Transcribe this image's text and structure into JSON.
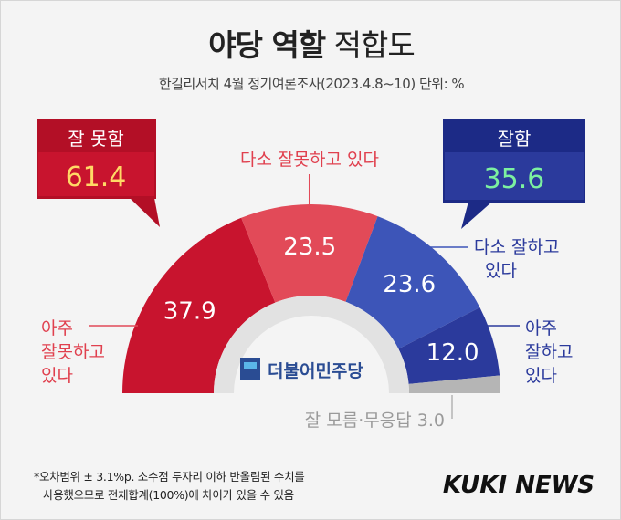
{
  "header": {
    "title_bold": "야당 역할",
    "title_light": "적합도",
    "subtitle": "한길리서치 4월 정기여론조사(2023.4.8~10) 단위: %"
  },
  "colors": {
    "red_dark": "#c8142e",
    "red_light": "#e24a58",
    "blue_dark": "#2b3a9c",
    "blue_light": "#3d55b8",
    "unknown": "#b5b5b5",
    "value_red": "#ffd966",
    "value_blue": "#7cf0a0"
  },
  "callouts": {
    "negative": {
      "label": "잘 못함",
      "value": "61.4"
    },
    "positive": {
      "label": "잘함",
      "value": "35.6"
    }
  },
  "chart_data": {
    "type": "pie",
    "variant": "semicircle-donut",
    "unit": "%",
    "slices": [
      {
        "key": "very_bad",
        "label": [
          "아주",
          "잘못하고",
          "있다"
        ],
        "value": 37.9,
        "display": "37.9",
        "color": "#c8142e"
      },
      {
        "key": "somewhat_bad",
        "label": [
          "다소 잘못하고 있다"
        ],
        "value": 23.5,
        "display": "23.5",
        "color": "#e24a58"
      },
      {
        "key": "somewhat_good",
        "label": [
          "다소 잘하고",
          "있다"
        ],
        "value": 23.6,
        "display": "23.6",
        "color": "#3d55b8"
      },
      {
        "key": "very_good",
        "label": [
          "아주",
          "잘하고",
          "있다"
        ],
        "value": 12.0,
        "display": "12.0",
        "color": "#2b3a9c"
      },
      {
        "key": "unknown",
        "label": [
          "잘 모름·무응답 3.0"
        ],
        "value": 3.0,
        "display": "",
        "color": "#b5b5b5"
      }
    ],
    "center_logo_text": "더불어민주당"
  },
  "footer": {
    "note_line1": "*오차범위 ± 3.1%p. 소수점 두자리 이하 반올림된 수치를",
    "note_line2": "사용했으므로 전체합계(100%)에 차이가 있을 수 있음",
    "brand": "KUKI NEWS"
  }
}
